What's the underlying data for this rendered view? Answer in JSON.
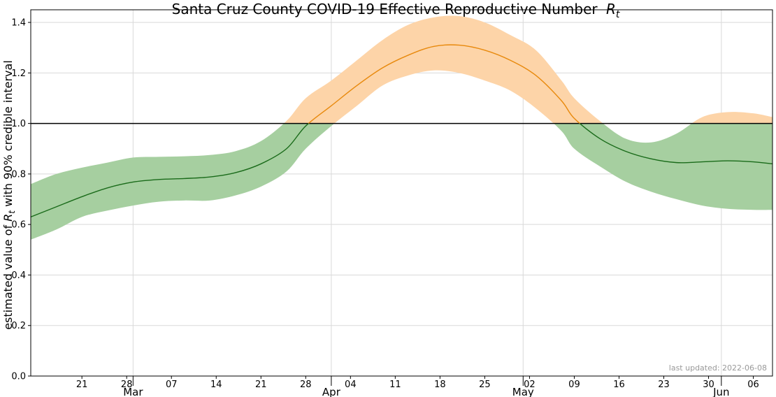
{
  "chart_data": {
    "type": "line",
    "title": "Santa Cruz County COVID-19 Effective Reproductive Number",
    "title_symbol": "R",
    "title_subscript": "t",
    "ylabel_prefix": "estimated value of ",
    "ylabel_symbol": "R",
    "ylabel_subscript": "t",
    "ylabel_suffix": " with 90% credible interval",
    "ylim": [
      0.0,
      1.45
    ],
    "xlim": [
      "2022-02-13",
      "2022-06-09"
    ],
    "grid": true,
    "reference_line": 1.0,
    "y_ticks": [
      "0.0",
      "0.2",
      "0.4",
      "0.6",
      "0.8",
      "1.0",
      "1.2",
      "1.4"
    ],
    "x_day_ticks": [
      {
        "date": "2022-02-21",
        "label": "21"
      },
      {
        "date": "2022-02-28",
        "label": "28"
      },
      {
        "date": "2022-03-07",
        "label": "07"
      },
      {
        "date": "2022-03-14",
        "label": "14"
      },
      {
        "date": "2022-03-21",
        "label": "21"
      },
      {
        "date": "2022-03-28",
        "label": "28"
      },
      {
        "date": "2022-04-04",
        "label": "04"
      },
      {
        "date": "2022-04-11",
        "label": "11"
      },
      {
        "date": "2022-04-18",
        "label": "18"
      },
      {
        "date": "2022-04-25",
        "label": "25"
      },
      {
        "date": "2022-05-02",
        "label": "02"
      },
      {
        "date": "2022-05-09",
        "label": "09"
      },
      {
        "date": "2022-05-16",
        "label": "16"
      },
      {
        "date": "2022-05-23",
        "label": "23"
      },
      {
        "date": "2022-05-30",
        "label": "30"
      },
      {
        "date": "2022-06-06",
        "label": "06"
      }
    ],
    "x_month_ticks": [
      {
        "date": "2022-03-01",
        "label": "Mar"
      },
      {
        "date": "2022-04-01",
        "label": "Apr"
      },
      {
        "date": "2022-05-01",
        "label": "May"
      },
      {
        "date": "2022-06-01",
        "label": "Jun"
      }
    ],
    "series": {
      "x": [
        "2022-02-13",
        "2022-02-17",
        "2022-02-21",
        "2022-02-25",
        "2022-03-01",
        "2022-03-05",
        "2022-03-09",
        "2022-03-13",
        "2022-03-17",
        "2022-03-21",
        "2022-03-25",
        "2022-03-28",
        "2022-04-01",
        "2022-04-05",
        "2022-04-09",
        "2022-04-13",
        "2022-04-17",
        "2022-04-21",
        "2022-04-25",
        "2022-04-29",
        "2022-05-03",
        "2022-05-07",
        "2022-05-09",
        "2022-05-13",
        "2022-05-17",
        "2022-05-21",
        "2022-05-25",
        "2022-05-29",
        "2022-06-02",
        "2022-06-06",
        "2022-06-09"
      ],
      "rt": [
        0.63,
        0.67,
        0.71,
        0.745,
        0.768,
        0.778,
        0.782,
        0.788,
        0.805,
        0.84,
        0.9,
        0.99,
        1.07,
        1.15,
        1.22,
        1.27,
        1.305,
        1.31,
        1.29,
        1.25,
        1.19,
        1.09,
        1.02,
        0.94,
        0.89,
        0.86,
        0.845,
        0.848,
        0.852,
        0.848,
        0.84
      ],
      "lower": [
        0.54,
        0.58,
        0.63,
        0.655,
        0.675,
        0.69,
        0.695,
        0.695,
        0.715,
        0.75,
        0.81,
        0.9,
        0.99,
        1.07,
        1.15,
        1.19,
        1.21,
        1.2,
        1.17,
        1.13,
        1.06,
        0.97,
        0.9,
        0.83,
        0.77,
        0.73,
        0.7,
        0.675,
        0.662,
        0.658,
        0.658
      ],
      "upper": [
        0.76,
        0.8,
        0.825,
        0.845,
        0.865,
        0.868,
        0.87,
        0.875,
        0.89,
        0.93,
        1.01,
        1.1,
        1.17,
        1.25,
        1.33,
        1.39,
        1.42,
        1.425,
        1.4,
        1.35,
        1.29,
        1.17,
        1.1,
        1.01,
        0.94,
        0.925,
        0.96,
        1.025,
        1.045,
        1.04,
        1.025
      ]
    },
    "colors": {
      "below_line": "#1a6b1a",
      "above_line": "#e8890c",
      "below_band": "#a6cfa0",
      "above_band": "#fdd4a8",
      "reference": "#000000",
      "grid": "#d9d9d9",
      "footnote": "#999999"
    }
  },
  "footnote": "last updated: 2022-06-08"
}
